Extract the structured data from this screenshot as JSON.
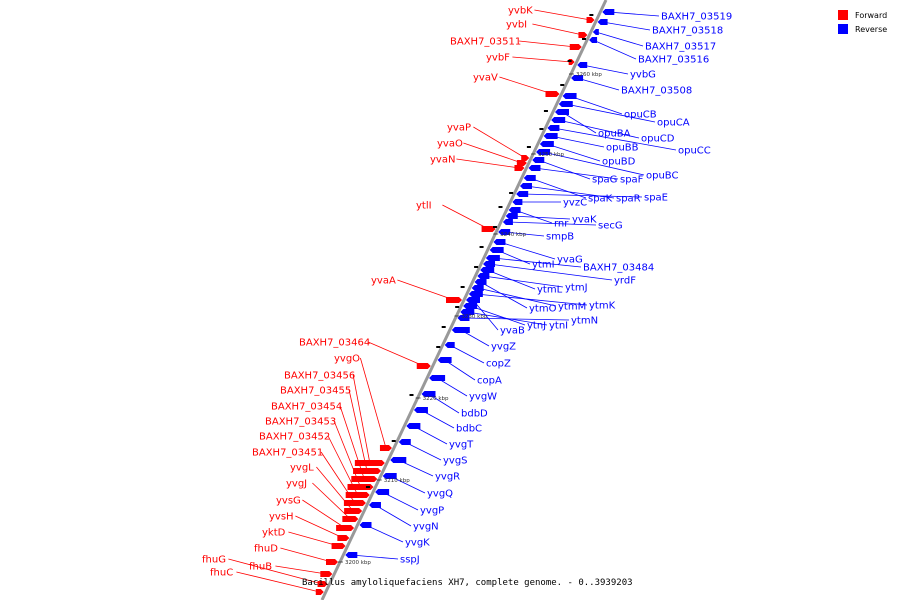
{
  "title": "Bacillus amyloliquefaciens XH7, complete genome. - 0..3939203",
  "legend": [
    {
      "label": "Forward",
      "color": "#ff0000"
    },
    {
      "label": "Reverse",
      "color": "#0000ff"
    }
  ],
  "colors": {
    "forward": "#ff0000",
    "reverse": "#0000ff",
    "backbone": "#999999",
    "line": "#000000"
  },
  "scale_ticks": [
    "3200 kbp",
    "3210 kbp",
    "3220 kbp",
    "3230 kbp",
    "3240 kbp",
    "3250 kbp",
    "3260 kbp"
  ],
  "forward_genes": [
    "yvbK",
    "yvbI",
    "BAXH7_03511",
    "yvbF",
    "yvaV",
    "yvaP",
    "yvaO",
    "yvaN",
    "ytlI",
    "yvaA",
    "BAXH7_03464",
    "yvgO",
    "BAXH7_03456",
    "BAXH7_03455",
    "BAXH7_03454",
    "BAXH7_03453",
    "BAXH7_03452",
    "BAXH7_03451",
    "yvgL",
    "yvgJ",
    "yvsG",
    "yvsH",
    "yktD",
    "fhuD",
    "fhuB",
    "fhuG",
    "fhuC"
  ],
  "reverse_genes": [
    "BAXH7_03519",
    "BAXH7_03518",
    "BAXH7_03517",
    "BAXH7_03516",
    "yvbG",
    "BAXH7_03508",
    "opuCB",
    "opuCA",
    "opuBA",
    "opuCD",
    "opuCC",
    "opuBB",
    "opuBD",
    "opuBC",
    "spaG",
    "spaF",
    "spaK",
    "spaR",
    "spaE",
    "yvzC",
    "rnr",
    "yvaK",
    "secG",
    "smpB",
    "yvaG",
    "ytmI",
    "BAXH7_03484",
    "yrdF",
    "ytmL",
    "ytmJ",
    "ytmO",
    "ytmM",
    "ytmK",
    "yvaB",
    "ytnJ",
    "ytnI",
    "ytmN",
    "yvgZ",
    "copZ",
    "copA",
    "yvgW",
    "bdbD",
    "bdbC",
    "yvgT",
    "yvgS",
    "yvgR",
    "yvgQ",
    "yvgP",
    "yvgN",
    "yvgK",
    "sspJ"
  ]
}
